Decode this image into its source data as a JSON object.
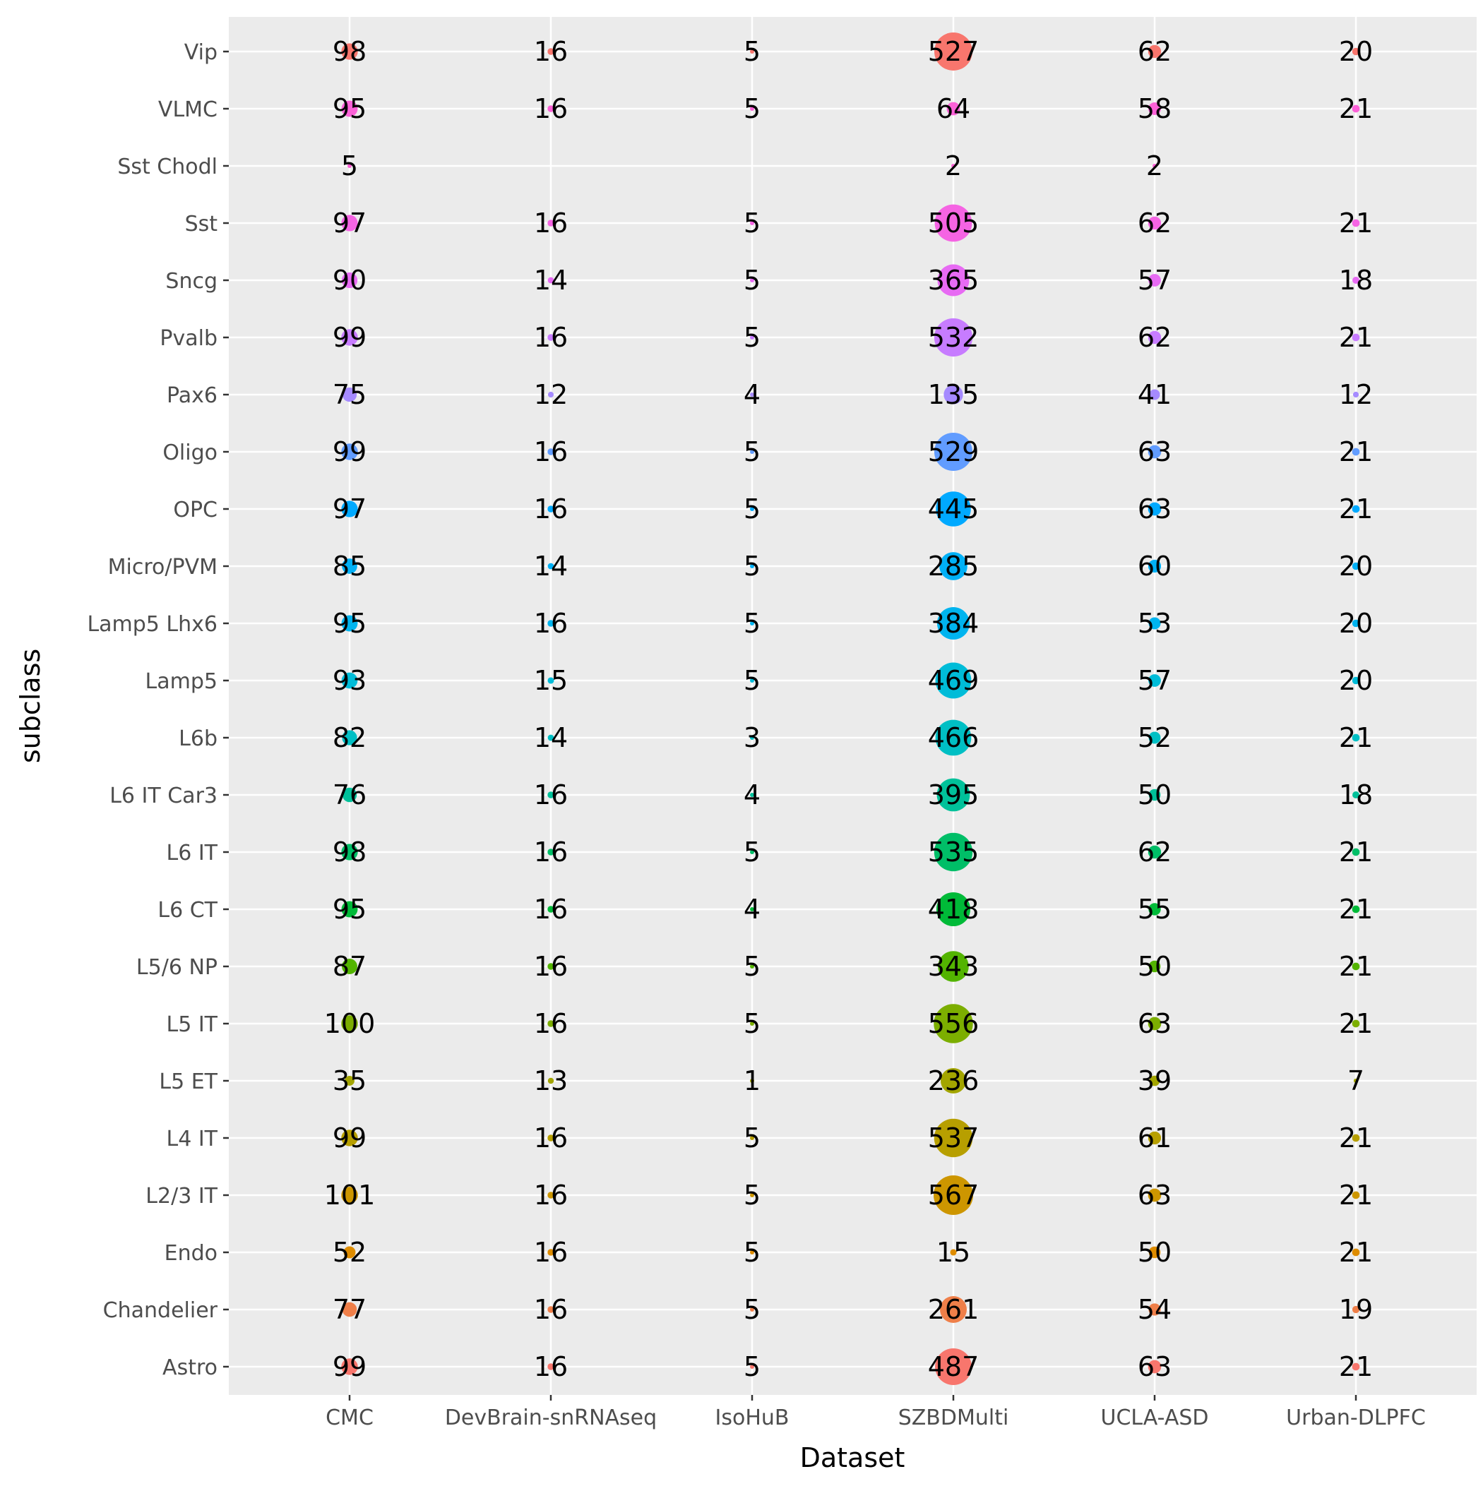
{
  "chart_data": {
    "type": "scatter",
    "xlabel": "Dataset",
    "ylabel": "subclass",
    "categories_x": [
      "CMC",
      "DevBrain-snRNAseq",
      "IsoHuB",
      "SZBDMulti",
      "UCLA-ASD",
      "Urban-DLPFC"
    ],
    "categories_y": [
      "Vip",
      "VLMC",
      "Sst Chodl",
      "Sst",
      "Sncg",
      "Pvalb",
      "Pax6",
      "Oligo",
      "OPC",
      "Micro/PVM",
      "Lamp5 Lhx6",
      "Lamp5",
      "L6b",
      "L6 IT Car3",
      "L6 IT",
      "L6 CT",
      "L5/6 NP",
      "L5 IT",
      "L5 ET",
      "L4 IT",
      "L2/3 IT",
      "Endo",
      "Chandelier",
      "Astro"
    ],
    "colors": {
      "Vip": "#F8766D",
      "VLMC": "#FB61D7",
      "Sst Chodl": "#FC61D5",
      "Sst": "#F564E3",
      "Sncg": "#E76BF3",
      "Pvalb": "#C77CFF",
      "Pax6": "#A58AFF",
      "Oligo": "#619CFF",
      "OPC": "#00A9FF",
      "Micro/PVM": "#00B0F6",
      "Lamp5 Lhx6": "#00B4EF",
      "Lamp5": "#00BCD8",
      "L6b": "#00BFC4",
      "L6 IT Car3": "#00C19A",
      "L6 IT": "#00BE67",
      "L6 CT": "#00BA38",
      "L5/6 NP": "#53B400",
      "L5 IT": "#7CAE00",
      "L5 ET": "#A3A500",
      "L4 IT": "#B79F00",
      "L2/3 IT": "#CD9600",
      "Endo": "#DE8C00",
      "Chandelier": "#EF7F49",
      "Astro": "#F8766D"
    },
    "values": {
      "Vip": [
        98,
        16,
        5,
        527,
        62,
        20
      ],
      "VLMC": [
        95,
        16,
        5,
        64,
        58,
        21
      ],
      "Sst Chodl": [
        5,
        null,
        null,
        2,
        2,
        null
      ],
      "Sst": [
        97,
        16,
        5,
        505,
        62,
        21
      ],
      "Sncg": [
        90,
        14,
        5,
        365,
        57,
        18
      ],
      "Pvalb": [
        99,
        16,
        5,
        532,
        62,
        21
      ],
      "Pax6": [
        75,
        12,
        4,
        135,
        41,
        12
      ],
      "Oligo": [
        99,
        16,
        5,
        529,
        63,
        21
      ],
      "OPC": [
        97,
        16,
        5,
        445,
        63,
        21
      ],
      "Micro/PVM": [
        85,
        14,
        5,
        285,
        60,
        20
      ],
      "Lamp5 Lhx6": [
        95,
        16,
        5,
        384,
        53,
        20
      ],
      "Lamp5": [
        93,
        15,
        5,
        469,
        57,
        20
      ],
      "L6b": [
        82,
        14,
        3,
        466,
        52,
        21
      ],
      "L6 IT Car3": [
        76,
        16,
        4,
        395,
        50,
        18
      ],
      "L6 IT": [
        98,
        16,
        5,
        535,
        62,
        21
      ],
      "L6 CT": [
        95,
        16,
        4,
        418,
        55,
        21
      ],
      "L5/6 NP": [
        87,
        16,
        5,
        343,
        50,
        21
      ],
      "L5 IT": [
        100,
        16,
        5,
        556,
        63,
        21
      ],
      "L5 ET": [
        35,
        13,
        1,
        236,
        39,
        7
      ],
      "L4 IT": [
        99,
        16,
        5,
        537,
        61,
        21
      ],
      "L2/3 IT": [
        101,
        16,
        5,
        567,
        63,
        21
      ],
      "Endo": [
        52,
        16,
        5,
        15,
        50,
        21
      ],
      "Chandelier": [
        77,
        16,
        5,
        261,
        54,
        19
      ],
      "Astro": [
        99,
        16,
        5,
        487,
        63,
        21
      ]
    },
    "size_range": [
      0,
      567
    ],
    "grid": true,
    "legend": "none"
  }
}
